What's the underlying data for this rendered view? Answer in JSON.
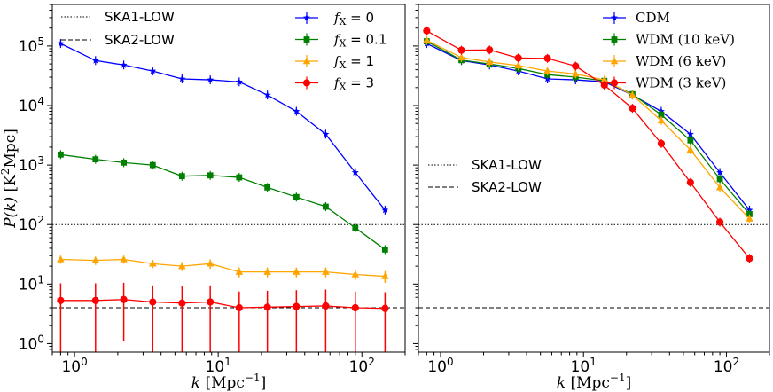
{
  "chart_data": [
    {
      "type": "line",
      "panel": "left",
      "xscale": "log",
      "yscale": "log",
      "xlim": [
        0.7,
        200
      ],
      "ylim": [
        0.72,
        500000
      ],
      "xlabel": "k [Mpc^-1]",
      "ylabel": "P(k) [K^2 Mpc]",
      "xticks": [
        "10^0",
        "10^1",
        "10^2"
      ],
      "yticks": [
        "10^0",
        "10^1",
        "10^2",
        "10^3",
        "10^4",
        "10^5"
      ],
      "x": [
        0.8,
        1.4,
        2.2,
        3.5,
        5.6,
        8.8,
        14,
        22,
        35,
        56,
        90,
        145
      ],
      "hlines": [
        {
          "label": "SKA1-LOW",
          "style": "dotted",
          "y": 100
        },
        {
          "label": "SKA2-LOW",
          "style": "dashed",
          "y": 4
        }
      ],
      "series": [
        {
          "name": "fX = 0",
          "color": "#0000ff",
          "marker": "star",
          "values": [
            110000,
            57000,
            48000,
            38000,
            28000,
            27000,
            25000,
            15000,
            8000,
            3300,
            750,
            175
          ]
        },
        {
          "name": "fX = 0.1",
          "color": "#008000",
          "marker": "square",
          "values": [
            1500,
            1250,
            1100,
            1000,
            650,
            670,
            620,
            420,
            290,
            200,
            88,
            38
          ]
        },
        {
          "name": "fX = 1",
          "color": "#ffa500",
          "marker": "triangle",
          "values": [
            26,
            25,
            26,
            22,
            20,
            22,
            16,
            16,
            16,
            16,
            14.5,
            13.5
          ],
          "err": [
            4,
            4,
            4,
            3.5,
            3.5,
            4,
            3,
            3,
            3,
            3,
            3,
            3
          ]
        },
        {
          "name": "fX = 3",
          "color": "#ff0000",
          "marker": "circle",
          "values": [
            5.3,
            5.3,
            5.5,
            5,
            4.8,
            5,
            4,
            4.1,
            4.2,
            4.3,
            4,
            3.9
          ],
          "err_lo": [
            4.6,
            4.6,
            4.4,
            4.3,
            4.1,
            4.3,
            3.3,
            3.4,
            3.5,
            3.6,
            3.3,
            3.2
          ],
          "err_hi": [
            5,
            5,
            5,
            4.5,
            4.3,
            4.5,
            3.5,
            3.6,
            3.7,
            3.8,
            3.5,
            3.4
          ]
        }
      ],
      "legend_placement": [
        "upper-left (lines)",
        "upper-right (series)"
      ]
    },
    {
      "type": "line",
      "panel": "right",
      "xscale": "log",
      "yscale": "log",
      "xlim": [
        0.7,
        200
      ],
      "ylim": [
        0.72,
        500000
      ],
      "xlabel": "k [Mpc^-1]",
      "xticks": [
        "10^0",
        "10^1",
        "10^2"
      ],
      "x": [
        0.8,
        1.4,
        2.2,
        3.5,
        5.6,
        8.8,
        14,
        22,
        35,
        56,
        90,
        145
      ],
      "hlines": [
        {
          "label": "SKA1-LOW",
          "style": "dotted",
          "y": 100
        },
        {
          "label": "SKA2-LOW",
          "style": "dashed",
          "y": 4
        }
      ],
      "series": [
        {
          "name": "CDM",
          "color": "#0000ff",
          "marker": "star",
          "values": [
            110000,
            57000,
            48000,
            38000,
            28000,
            27000,
            25000,
            15000,
            8000,
            3300,
            750,
            175
          ]
        },
        {
          "name": "WDM (10 keV)",
          "color": "#008000",
          "marker": "square",
          "values": [
            120000,
            58000,
            50000,
            42000,
            33000,
            30000,
            26000,
            15500,
            7000,
            2600,
            580,
            150
          ]
        },
        {
          "name": "WDM (6 keV)",
          "color": "#ffa500",
          "marker": "triangle",
          "values": [
            125000,
            64000,
            54000,
            47000,
            38000,
            34000,
            27000,
            15000,
            5600,
            1800,
            420,
            125
          ]
        },
        {
          "name": "WDM (3 keV)",
          "color": "#ff0000",
          "marker": "circle",
          "values": [
            180000,
            85000,
            86000,
            63000,
            62000,
            46000,
            22000,
            9000,
            2300,
            510,
            110,
            27
          ]
        }
      ],
      "legend_placement": [
        "upper-right (series)",
        "center-left (lines)"
      ]
    }
  ],
  "legend_left_lines": [
    "SKA1-LOW",
    "SKA2-LOW"
  ],
  "legend_left_series": [
    {
      "prefix": "f",
      "sub": "X",
      "rest": " = 0"
    },
    {
      "prefix": "f",
      "sub": "X",
      "rest": " = 0.1"
    },
    {
      "prefix": "f",
      "sub": "X",
      "rest": " = 1"
    },
    {
      "prefix": "f",
      "sub": "X",
      "rest": " = 3"
    }
  ],
  "legend_right_series": [
    "CDM",
    "WDM (10 keV)",
    "WDM (6 keV)",
    "WDM (3 keV)"
  ],
  "legend_right_lines": [
    "SKA1-LOW",
    "SKA2-LOW"
  ],
  "xlabel_parts": {
    "k": "k",
    "unit": "[Mpc",
    "exp": "−1",
    "close": "]"
  },
  "ylabel_parts": {
    "p": "P(k)",
    "unit": "[K",
    "exp": "2",
    "rest": "Mpc]"
  }
}
